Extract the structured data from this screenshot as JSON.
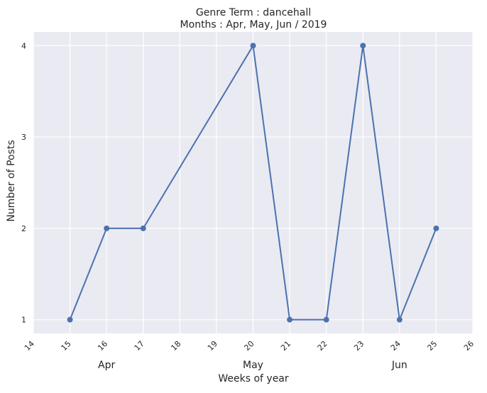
{
  "chart_data": {
    "type": "line",
    "title": "Genre Term : dancehall",
    "subtitle": "Months : Apr, May, Jun / 2019",
    "xlabel": "Weeks of year",
    "ylabel": "Number of Posts",
    "xlim": [
      14,
      26
    ],
    "ylim": [
      0.85,
      4.15
    ],
    "x_ticks": [
      14,
      15,
      16,
      17,
      18,
      19,
      20,
      21,
      22,
      23,
      24,
      25,
      26
    ],
    "y_ticks": [
      1,
      2,
      3,
      4
    ],
    "month_labels": [
      {
        "label": "Apr",
        "x": 16
      },
      {
        "label": "May",
        "x": 20
      },
      {
        "label": "Jun",
        "x": 24
      }
    ],
    "grid": true,
    "series": [
      {
        "x": [
          15,
          16,
          17,
          20,
          21,
          22,
          23,
          24,
          25
        ],
        "y": [
          1,
          2,
          2,
          4,
          1,
          1,
          4,
          1,
          2
        ],
        "color": "#4c72b0"
      }
    ],
    "background_color": "#eaeaf2",
    "grid_color": "#ffffff"
  }
}
